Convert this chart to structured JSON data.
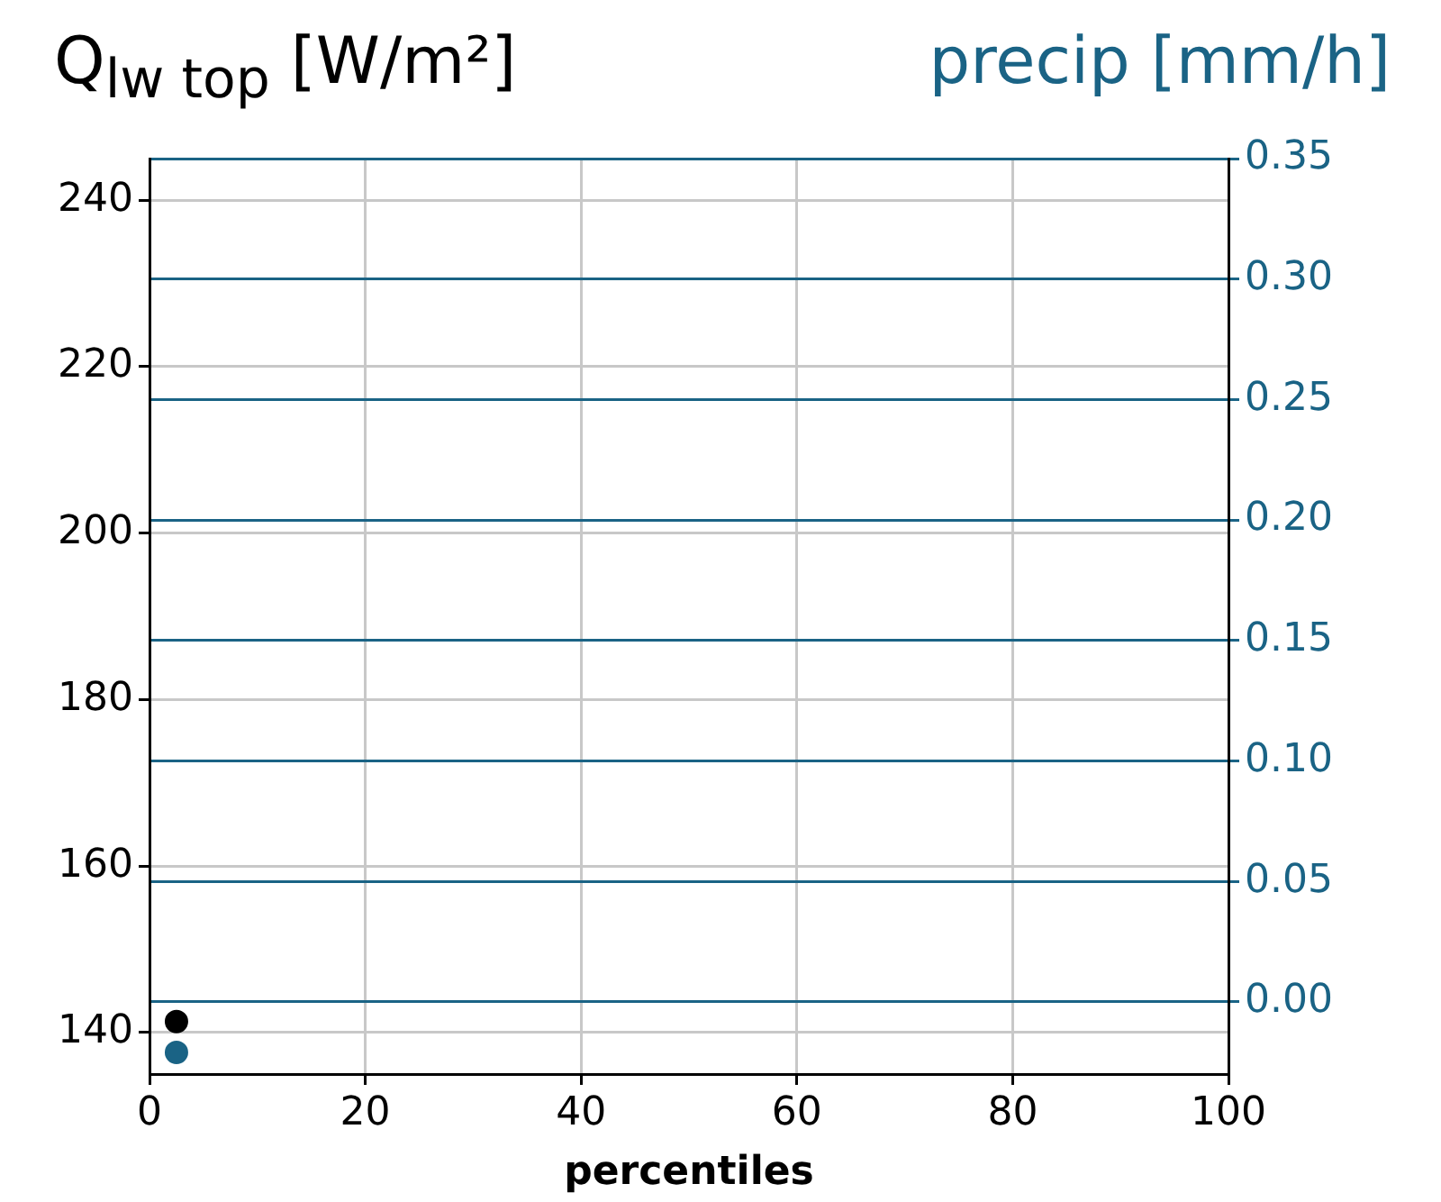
{
  "chart_data": {
    "type": "scatter",
    "ylabel": "Q$_{lw top}$ [W/m²]",
    "y2label": "precip [mm/h]",
    "xlabel": "percentiles",
    "series": [
      {
        "color": "#000000",
        "x": [
          2.5
        ],
        "values": [
          141.3
        ]
      },
      {
        "color": "#1a6385",
        "x": [
          2.5
        ],
        "values": [
          -0.021
        ],
        "axis": "y2"
      }
    ],
    "xlim": [
      0,
      100
    ],
    "xticks": [
      0,
      20,
      40,
      60,
      80,
      100
    ],
    "ylim": [
      135,
      245
    ],
    "yticks": [
      140,
      160,
      180,
      200,
      220,
      240
    ],
    "y2lim": [
      -0.03,
      0.35
    ],
    "y2ticks": [
      {
        "value": 0,
        "label": "0.00"
      },
      {
        "value": 0.05,
        "label": "0.05"
      },
      {
        "value": 0.1,
        "label": "0.10"
      },
      {
        "value": 0.15,
        "label": "0.15"
      },
      {
        "value": 0.2,
        "label": "0.20"
      },
      {
        "value": 0.25,
        "label": "0.25"
      },
      {
        "value": 0.3,
        "label": "0.30"
      },
      {
        "value": 0.35,
        "label": "0.35"
      }
    ],
    "grid": true,
    "marker": "circle",
    "legend": false
  }
}
